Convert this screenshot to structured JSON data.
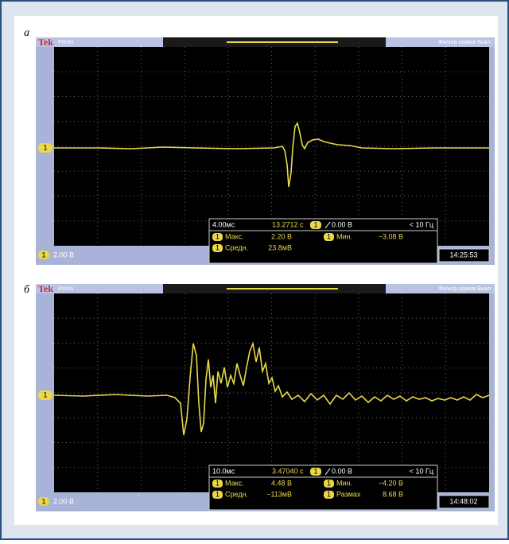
{
  "panels": [
    {
      "label": "а",
      "scope": {
        "brand": "Tek",
        "mode": "PreVu",
        "filter": "Фильтр шумов Выкл"
      },
      "channel": "1",
      "scale": "2.00 В",
      "timebase": "4.00мс",
      "time": "13.2712 с",
      "trigger": "0.00 В",
      "bandwidth": "< 10 Гц",
      "measurements": [
        {
          "name": "Макс.",
          "value": "2.20 В"
        },
        {
          "name": "Мин.",
          "value": "−3.08 В"
        },
        {
          "name": "Средн.",
          "value": "23.8мВ"
        }
      ],
      "clock": "14:25:53"
    },
    {
      "label": "б",
      "scope": {
        "brand": "Tek",
        "mode": "PreVu",
        "filter": "Фильтр шумов Выкл"
      },
      "channel": "1",
      "scale": "2.00 В",
      "timebase": "10.0мс",
      "time": "3.47040 с",
      "trigger": "0.00 В",
      "bandwidth": "< 10 Гц",
      "measurements": [
        {
          "name": "Макс.",
          "value": "4.48 В"
        },
        {
          "name": "Мин.",
          "value": "−4.20 В"
        },
        {
          "name": "Средн.",
          "value": "−113мВ"
        },
        {
          "name": "Размах",
          "value": "8.68 В"
        }
      ],
      "clock": "14:48:02"
    }
  ]
}
